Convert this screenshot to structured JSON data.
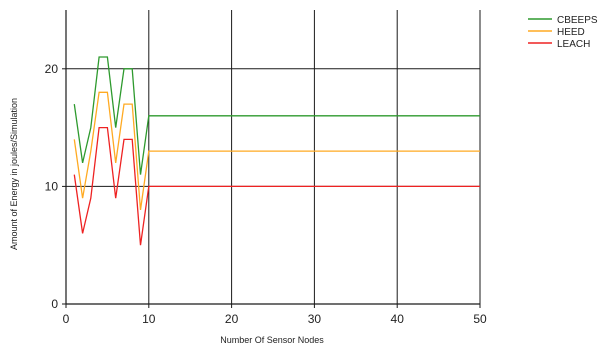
{
  "chart_data": {
    "type": "line",
    "title": "",
    "xlabel": "Number Of Sensor Nodes",
    "ylabel": "Amount of Energy in joules/Simulation",
    "xlim": [
      0,
      50
    ],
    "ylim": [
      0,
      25
    ],
    "x_ticks": [
      0,
      10,
      20,
      30,
      40,
      50
    ],
    "y_ticks": [
      0,
      10,
      20
    ],
    "grid": true,
    "legend_position": "top-right",
    "series": [
      {
        "name": "CBEEPS",
        "color": "#2e9a2e",
        "x": [
          1,
          2,
          3,
          4,
          5,
          6,
          7,
          8,
          9,
          10,
          20,
          30,
          40,
          50
        ],
        "values": [
          17,
          12,
          15,
          21,
          21,
          15,
          20,
          20,
          11,
          16,
          16,
          16,
          16,
          16
        ]
      },
      {
        "name": "HEED",
        "color": "#ffaa22",
        "x": [
          1,
          2,
          3,
          4,
          5,
          6,
          7,
          8,
          9,
          10,
          20,
          30,
          40,
          50
        ],
        "values": [
          14,
          9,
          13,
          18,
          18,
          12,
          17,
          17,
          8,
          13,
          13,
          13,
          13,
          13
        ]
      },
      {
        "name": "LEACH",
        "color": "#ee2222",
        "x": [
          1,
          2,
          3,
          4,
          5,
          6,
          7,
          8,
          9,
          10,
          20,
          30,
          40,
          50
        ],
        "values": [
          11,
          6,
          9,
          15,
          15,
          9,
          14,
          14,
          5,
          10,
          10,
          10,
          10,
          10
        ]
      }
    ]
  }
}
